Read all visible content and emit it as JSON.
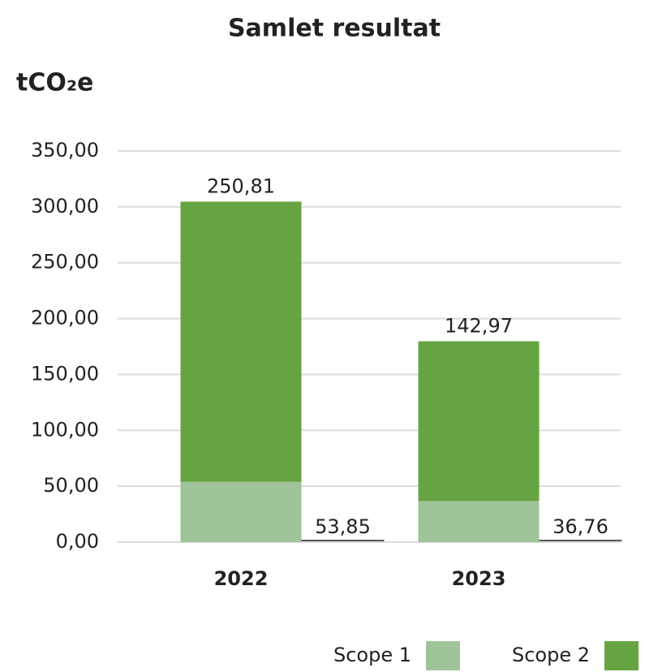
{
  "chart_data": {
    "type": "stacked_bar",
    "title": "Samlet resultat",
    "y_label": "tCO₂e",
    "categories": [
      "2022",
      "2023"
    ],
    "series": [
      {
        "name": "Scope 1",
        "color": "#a0c49a",
        "values": [
          53.85,
          36.76
        ],
        "value_labels": [
          "53,85",
          "36,76"
        ]
      },
      {
        "name": "Scope 2",
        "color": "#66a443",
        "values": [
          250.81,
          142.97
        ],
        "value_labels": [
          "250,81",
          "142,97"
        ]
      }
    ],
    "ylim": [
      0,
      350
    ],
    "yticks": [
      {
        "value": 0,
        "label": "0,00"
      },
      {
        "value": 50,
        "label": "50,00"
      },
      {
        "value": 100,
        "label": "100,00"
      },
      {
        "value": 150,
        "label": "150,00"
      },
      {
        "value": 200,
        "label": "200,00"
      },
      {
        "value": 250,
        "label": "250,00"
      },
      {
        "value": 300,
        "label": "300,00"
      },
      {
        "value": 350,
        "label": "350,00"
      }
    ],
    "grid": true,
    "legend": "bottom-right"
  }
}
